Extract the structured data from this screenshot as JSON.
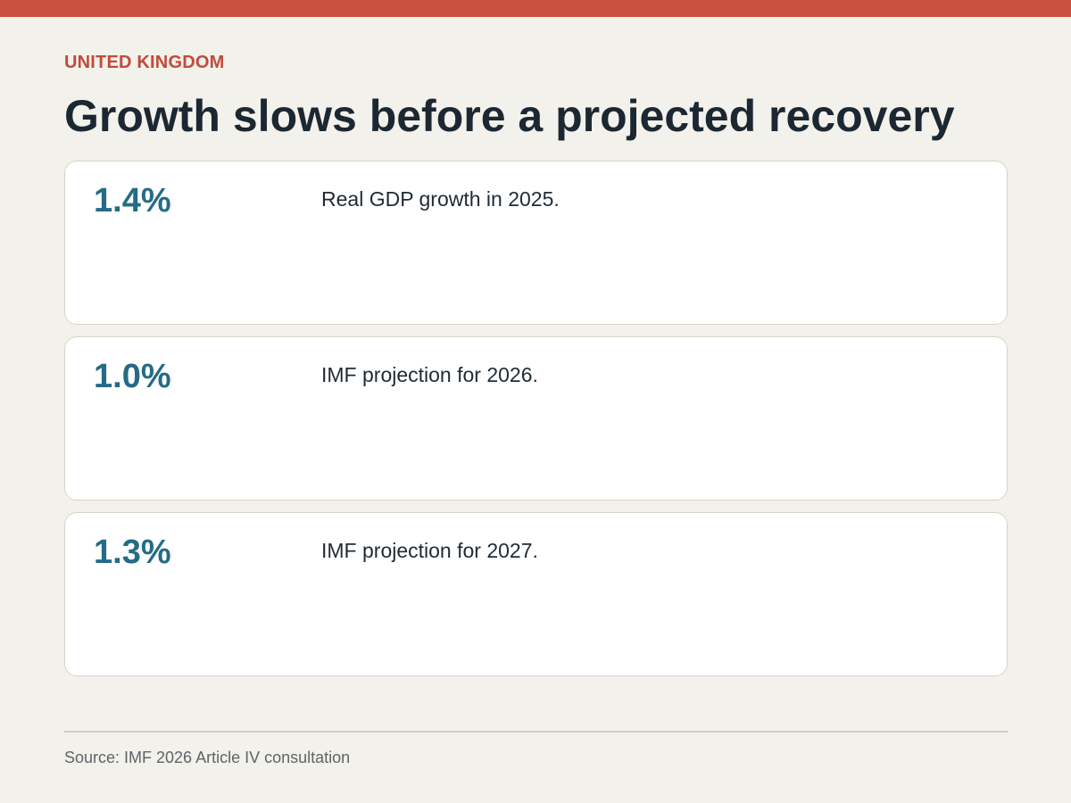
{
  "colors": {
    "accent_bar": "#c94f3f",
    "kicker": "#c24a3a",
    "value": "#256b86",
    "background": "#f3f1eb",
    "card_background": "#ffffff"
  },
  "header": {
    "kicker": "UNITED KINGDOM",
    "headline": "Growth slows before a projected recovery"
  },
  "cards": [
    {
      "value": "1.4%",
      "description": "Real GDP growth in 2025."
    },
    {
      "value": "1.0%",
      "description": "IMF projection for 2026."
    },
    {
      "value": "1.3%",
      "description": "IMF projection for 2027."
    }
  ],
  "footer": {
    "source": "Source: IMF 2026 Article IV consultation"
  }
}
